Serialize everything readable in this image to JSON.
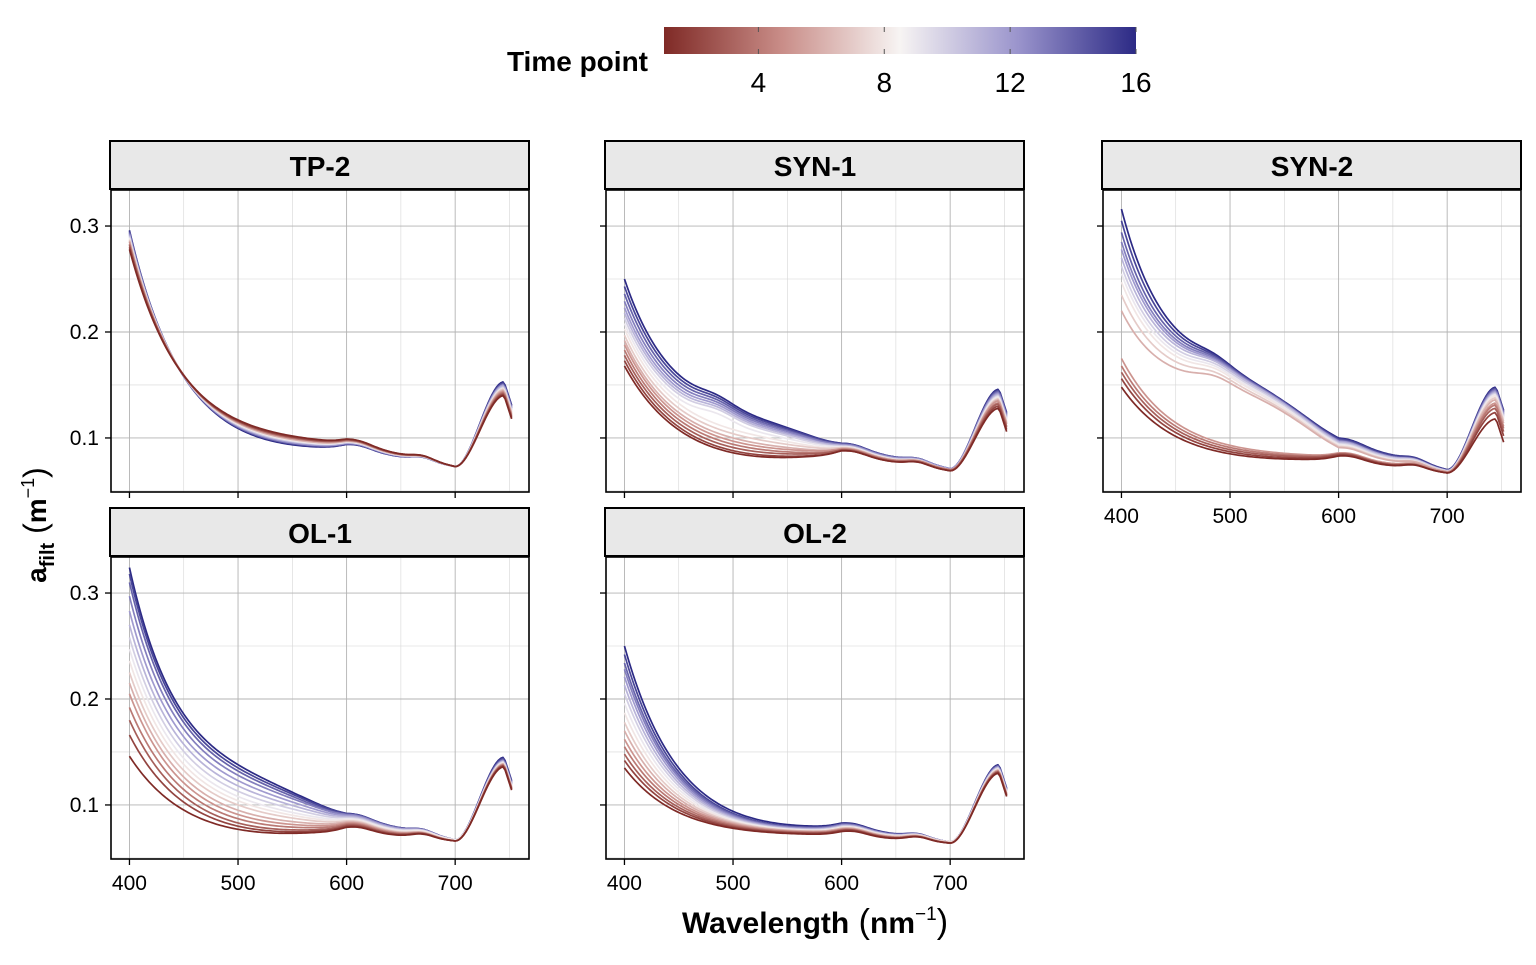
{
  "legend": {
    "title": "Time point",
    "ticks": [
      4,
      8,
      12,
      16
    ],
    "range": [
      1,
      16
    ],
    "colors": [
      "#7f2a26",
      "#c98d88",
      "#f7f4f3",
      "#9a94cc",
      "#2c2a85"
    ]
  },
  "axes": {
    "xlabel": "Wavelength",
    "xlabel_unit": "nm",
    "xlabel_exp": "−1",
    "ylabel_main": "a",
    "ylabel_sub": "filt",
    "ylabel_unit": "m",
    "ylabel_exp": "−1"
  },
  "chart_data": {
    "type": "line",
    "x_ticks": [
      400,
      500,
      600,
      700
    ],
    "y_ticks": [
      0.1,
      0.2,
      0.3
    ],
    "x_tick_labels": [
      "400",
      "500",
      "600",
      "700"
    ],
    "y_tick_labels": [
      "0.1",
      "0.2",
      "0.3"
    ],
    "xlim": [
      383,
      768
    ],
    "ylim": [
      0.049,
      0.334
    ],
    "grid": true,
    "color_scale": "Time point (1–16), diverging red–white–blue",
    "panels": [
      {
        "title": "TP-2",
        "time_points": [
          1,
          2,
          3,
          4,
          5,
          6,
          7,
          8,
          9,
          10,
          11,
          12,
          13,
          14,
          15,
          16
        ],
        "a400": [
          0.278,
          0.28,
          0.282,
          0.283,
          0.285,
          0.286,
          0.287,
          0.288,
          0.289,
          0.29,
          0.291,
          0.292,
          0.293,
          0.294,
          0.295,
          0.296
        ],
        "a500": [
          0.117,
          0.116,
          0.116,
          0.115,
          0.115,
          0.114,
          0.114,
          0.113,
          0.113,
          0.112,
          0.112,
          0.111,
          0.111,
          0.11,
          0.11,
          0.109
        ],
        "a600": [
          0.096,
          0.096,
          0.095,
          0.095,
          0.095,
          0.094,
          0.094,
          0.094,
          0.093,
          0.093,
          0.093,
          0.092,
          0.092,
          0.092,
          0.091,
          0.091
        ],
        "a700": [
          0.073,
          0.073,
          0.073,
          0.073,
          0.073,
          0.073,
          0.073,
          0.073,
          0.073,
          0.073,
          0.073,
          0.073,
          0.073,
          0.073,
          0.073,
          0.073
        ],
        "a745": [
          0.14,
          0.141,
          0.142,
          0.143,
          0.144,
          0.145,
          0.146,
          0.147,
          0.147,
          0.148,
          0.149,
          0.15,
          0.15,
          0.151,
          0.152,
          0.153
        ]
      },
      {
        "title": "SYN-1",
        "time_points": [
          1,
          2,
          3,
          4,
          5,
          6,
          7,
          8,
          9,
          10,
          11,
          12,
          13,
          14,
          15,
          16
        ],
        "a400": [
          0.168,
          0.173,
          0.178,
          0.183,
          0.188,
          0.192,
          0.197,
          0.203,
          0.208,
          0.213,
          0.218,
          0.223,
          0.229,
          0.236,
          0.243,
          0.25
        ],
        "a500": [
          0.086,
          0.088,
          0.091,
          0.094,
          0.097,
          0.1,
          0.104,
          0.108,
          0.112,
          0.116,
          0.118,
          0.12,
          0.122,
          0.124,
          0.126,
          0.128
        ],
        "a600": [
          0.085,
          0.085,
          0.086,
          0.086,
          0.087,
          0.087,
          0.088,
          0.088,
          0.089,
          0.089,
          0.09,
          0.09,
          0.091,
          0.091,
          0.092,
          0.092
        ],
        "a700": [
          0.069,
          0.069,
          0.069,
          0.07,
          0.07,
          0.07,
          0.07,
          0.07,
          0.07,
          0.07,
          0.07,
          0.071,
          0.071,
          0.071,
          0.071,
          0.071
        ],
        "a745": [
          0.128,
          0.13,
          0.132,
          0.133,
          0.135,
          0.136,
          0.137,
          0.138,
          0.139,
          0.14,
          0.141,
          0.142,
          0.143,
          0.144,
          0.145,
          0.146
        ]
      },
      {
        "title": "SYN-2",
        "time_points": [
          1,
          2,
          3,
          4,
          5,
          6,
          7,
          8,
          9,
          10,
          11,
          12,
          13,
          14,
          15,
          16
        ],
        "a400": [
          0.148,
          0.156,
          0.162,
          0.168,
          0.175,
          0.22,
          0.235,
          0.247,
          0.255,
          0.262,
          0.27,
          0.278,
          0.285,
          0.294,
          0.305,
          0.316
        ],
        "a500": [
          0.085,
          0.087,
          0.089,
          0.091,
          0.093,
          0.148,
          0.151,
          0.154,
          0.156,
          0.158,
          0.16,
          0.161,
          0.162,
          0.163,
          0.164,
          0.165
        ],
        "a600": [
          0.08,
          0.081,
          0.082,
          0.082,
          0.083,
          0.088,
          0.089,
          0.09,
          0.091,
          0.092,
          0.093,
          0.094,
          0.094,
          0.095,
          0.096,
          0.097
        ],
        "a700": [
          0.067,
          0.067,
          0.067,
          0.067,
          0.068,
          0.068,
          0.068,
          0.068,
          0.068,
          0.069,
          0.069,
          0.069,
          0.069,
          0.069,
          0.07,
          0.07
        ],
        "a745": [
          0.118,
          0.124,
          0.128,
          0.131,
          0.133,
          0.136,
          0.138,
          0.14,
          0.141,
          0.142,
          0.143,
          0.144,
          0.145,
          0.146,
          0.147,
          0.148
        ]
      },
      {
        "title": "OL-1",
        "time_points": [
          1,
          2,
          3,
          4,
          5,
          6,
          7,
          8,
          9,
          10,
          11,
          12,
          13,
          14,
          15,
          16
        ],
        "a400": [
          0.146,
          0.166,
          0.18,
          0.192,
          0.205,
          0.215,
          0.225,
          0.236,
          0.247,
          0.258,
          0.27,
          0.283,
          0.297,
          0.31,
          0.318,
          0.324
        ],
        "a500": [
          0.077,
          0.08,
          0.083,
          0.087,
          0.091,
          0.095,
          0.1,
          0.104,
          0.108,
          0.113,
          0.118,
          0.123,
          0.128,
          0.132,
          0.135,
          0.138
        ],
        "a600": [
          0.076,
          0.077,
          0.078,
          0.079,
          0.08,
          0.081,
          0.082,
          0.083,
          0.084,
          0.085,
          0.086,
          0.087,
          0.088,
          0.088,
          0.089,
          0.089
        ],
        "a700": [
          0.066,
          0.066,
          0.066,
          0.066,
          0.066,
          0.066,
          0.066,
          0.067,
          0.067,
          0.067,
          0.067,
          0.067,
          0.067,
          0.067,
          0.067,
          0.067
        ],
        "a745": [
          0.136,
          0.137,
          0.137,
          0.138,
          0.138,
          0.139,
          0.139,
          0.14,
          0.14,
          0.141,
          0.141,
          0.142,
          0.142,
          0.143,
          0.144,
          0.145
        ]
      },
      {
        "title": "OL-2",
        "time_points": [
          1,
          2,
          3,
          4,
          5,
          6,
          7,
          8,
          9,
          10,
          11,
          12,
          13,
          14,
          15,
          16
        ],
        "a400": [
          0.135,
          0.142,
          0.148,
          0.155,
          0.162,
          0.17,
          0.178,
          0.187,
          0.196,
          0.205,
          0.213,
          0.221,
          0.228,
          0.234,
          0.242,
          0.25
        ],
        "a500": [
          0.078,
          0.079,
          0.08,
          0.081,
          0.082,
          0.083,
          0.084,
          0.085,
          0.086,
          0.087,
          0.088,
          0.089,
          0.09,
          0.091,
          0.092,
          0.094
        ],
        "a600": [
          0.072,
          0.073,
          0.073,
          0.074,
          0.074,
          0.075,
          0.075,
          0.076,
          0.076,
          0.077,
          0.077,
          0.078,
          0.078,
          0.079,
          0.079,
          0.08
        ],
        "a700": [
          0.064,
          0.064,
          0.064,
          0.064,
          0.064,
          0.064,
          0.065,
          0.065,
          0.065,
          0.065,
          0.065,
          0.065,
          0.065,
          0.065,
          0.065,
          0.065
        ],
        "a745": [
          0.13,
          0.131,
          0.131,
          0.132,
          0.132,
          0.133,
          0.133,
          0.134,
          0.134,
          0.135,
          0.135,
          0.136,
          0.136,
          0.137,
          0.137,
          0.138
        ]
      }
    ]
  }
}
